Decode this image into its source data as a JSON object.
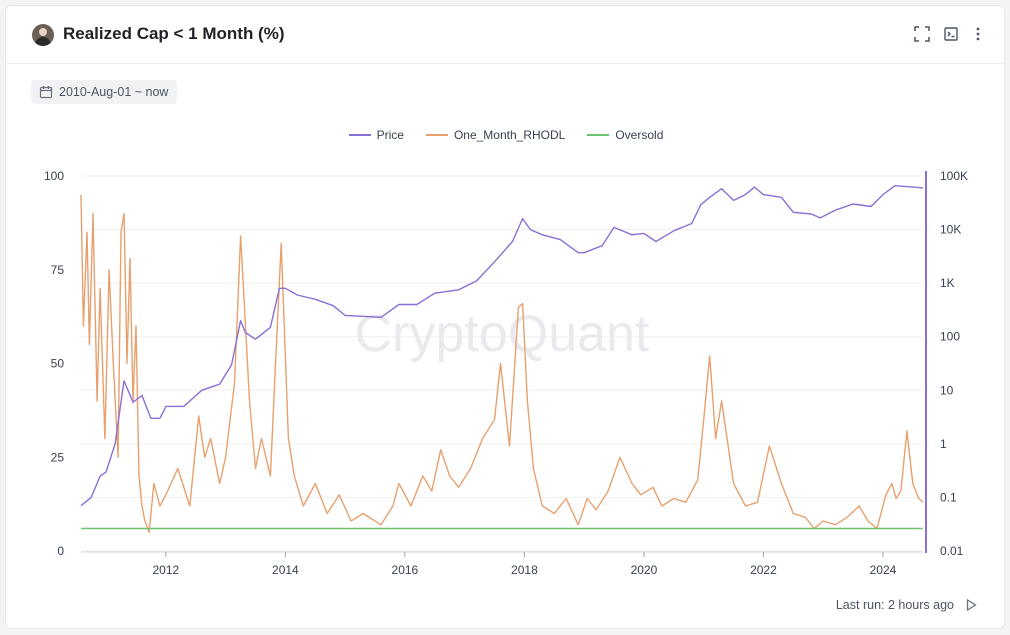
{
  "header": {
    "title": "Realized Cap < 1 Month (%)"
  },
  "date_range": {
    "label": "2010-Aug-01 ~ now"
  },
  "footer": {
    "last_run": "Last run: 2 hours ago"
  },
  "watermark": "CryptoQuant",
  "colors": {
    "price": "#8a6fd6",
    "rhodl": "#e8a06e",
    "oversold": "#6cc46f",
    "right_axis": "#8a6fd6",
    "grid": "#efefef"
  },
  "chart_data": {
    "type": "line",
    "legend": [
      "Price",
      "One_Month_RHODL",
      "Oversold"
    ],
    "legend_position": "top-center",
    "x_ticks": [
      "2012",
      "2014",
      "2016",
      "2018",
      "2020",
      "2022",
      "2024"
    ],
    "xlim": [
      2010.58,
      2024.67
    ],
    "y_left": {
      "lim": [
        0,
        100
      ],
      "ticks": [
        "0",
        "25",
        "50",
        "75",
        "100"
      ]
    },
    "y_right": {
      "scale": "log",
      "lim": [
        0.01,
        100000
      ],
      "ticks": [
        "0.01",
        "0.1",
        "1",
        "10",
        "100",
        "1K",
        "10K",
        "100K"
      ]
    },
    "grid": true,
    "series": [
      {
        "name": "Price",
        "axis": "right",
        "x": [
          2010.58,
          2010.75,
          2010.9,
          2011.0,
          2011.15,
          2011.3,
          2011.45,
          2011.6,
          2011.75,
          2011.9,
          2012.0,
          2012.3,
          2012.6,
          2012.9,
          2013.1,
          2013.25,
          2013.33,
          2013.5,
          2013.75,
          2013.9,
          2014.0,
          2014.2,
          2014.5,
          2014.8,
          2015.0,
          2015.3,
          2015.6,
          2015.9,
          2016.2,
          2016.5,
          2016.9,
          2017.2,
          2017.5,
          2017.8,
          2017.97,
          2018.1,
          2018.3,
          2018.6,
          2018.9,
          2019.0,
          2019.3,
          2019.5,
          2019.8,
          2020.0,
          2020.2,
          2020.5,
          2020.8,
          2020.95,
          2021.1,
          2021.3,
          2021.5,
          2021.7,
          2021.85,
          2022.0,
          2022.3,
          2022.5,
          2022.8,
          2022.95,
          2023.2,
          2023.5,
          2023.8,
          2024.0,
          2024.2,
          2024.5,
          2024.67
        ],
        "values": [
          0.07,
          0.1,
          0.25,
          0.3,
          1,
          15,
          6,
          8,
          3,
          3,
          5,
          5,
          10,
          13,
          30,
          200,
          120,
          90,
          150,
          800,
          800,
          600,
          500,
          380,
          250,
          240,
          230,
          400,
          400,
          650,
          750,
          1100,
          2500,
          6000,
          16000,
          10000,
          8000,
          6500,
          3700,
          3700,
          5000,
          11000,
          8000,
          8500,
          6000,
          9500,
          13000,
          29000,
          40000,
          58000,
          35000,
          45000,
          62000,
          45000,
          40000,
          21000,
          19500,
          16500,
          23000,
          30000,
          27000,
          45000,
          66000,
          62000,
          60000
        ]
      },
      {
        "name": "One_Month_RHODL",
        "axis": "left",
        "x": [
          2010.58,
          2010.62,
          2010.68,
          2010.72,
          2010.78,
          2010.85,
          2010.9,
          2010.98,
          2011.05,
          2011.12,
          2011.2,
          2011.25,
          2011.3,
          2011.35,
          2011.4,
          2011.45,
          2011.5,
          2011.55,
          2011.6,
          2011.65,
          2011.72,
          2011.8,
          2011.9,
          2012.0,
          2012.2,
          2012.4,
          2012.55,
          2012.65,
          2012.75,
          2012.9,
          2013.0,
          2013.15,
          2013.25,
          2013.3,
          2013.4,
          2013.5,
          2013.6,
          2013.75,
          2013.85,
          2013.93,
          2014.05,
          2014.15,
          2014.3,
          2014.5,
          2014.7,
          2014.9,
          2015.1,
          2015.3,
          2015.6,
          2015.8,
          2015.9,
          2016.1,
          2016.3,
          2016.45,
          2016.6,
          2016.75,
          2016.9,
          2017.1,
          2017.3,
          2017.5,
          2017.6,
          2017.75,
          2017.9,
          2017.97,
          2018.05,
          2018.15,
          2018.3,
          2018.5,
          2018.7,
          2018.9,
          2019.05,
          2019.2,
          2019.4,
          2019.6,
          2019.8,
          2019.95,
          2020.15,
          2020.3,
          2020.5,
          2020.7,
          2020.9,
          2021.0,
          2021.1,
          2021.2,
          2021.3,
          2021.5,
          2021.7,
          2021.9,
          2022.1,
          2022.3,
          2022.5,
          2022.7,
          2022.85,
          2023.0,
          2023.2,
          2023.4,
          2023.6,
          2023.75,
          2023.9,
          2024.05,
          2024.15,
          2024.22,
          2024.3,
          2024.4,
          2024.5,
          2024.6,
          2024.67
        ],
        "values": [
          95,
          60,
          85,
          55,
          90,
          40,
          70,
          30,
          75,
          50,
          25,
          85,
          90,
          50,
          78,
          40,
          60,
          20,
          12,
          8,
          5,
          18,
          12,
          15,
          22,
          12,
          36,
          25,
          30,
          18,
          25,
          45,
          84,
          70,
          40,
          22,
          30,
          20,
          55,
          82,
          30,
          20,
          12,
          18,
          10,
          15,
          8,
          10,
          7,
          12,
          18,
          12,
          20,
          16,
          27,
          20,
          17,
          22,
          30,
          35,
          50,
          28,
          65,
          66,
          40,
          22,
          12,
          10,
          14,
          7,
          14,
          11,
          16,
          25,
          18,
          15,
          17,
          12,
          14,
          13,
          19,
          35,
          52,
          30,
          40,
          18,
          12,
          13,
          28,
          18,
          10,
          9,
          6,
          8,
          7,
          9,
          12,
          8,
          6,
          15,
          18,
          14,
          16,
          32,
          18,
          14,
          13
        ]
      },
      {
        "name": "Oversold",
        "axis": "left",
        "x": [
          2010.58,
          2024.67
        ],
        "values": [
          6,
          6
        ]
      }
    ]
  }
}
